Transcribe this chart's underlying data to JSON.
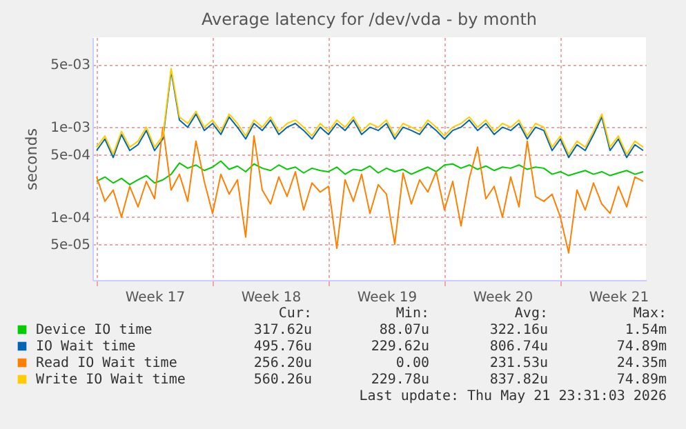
{
  "chart_data": {
    "type": "line",
    "title": "Average latency for /dev/vda - by month",
    "ylabel": "seconds",
    "log": true,
    "grid": true,
    "legend": "bottom",
    "ylim": [
      2e-05,
      0.01
    ],
    "yticks": [
      {
        "value": 0.005,
        "label": "5e-03"
      },
      {
        "value": 0.001,
        "label": "1e-03"
      },
      {
        "value": 0.0005,
        "label": "5e-04"
      },
      {
        "value": 0.0001,
        "label": "1e-04"
      },
      {
        "value": 5e-05,
        "label": "5e-05"
      }
    ],
    "xlim": [
      "2026-04-19T18:00",
      "2026-05-23T04:00"
    ],
    "xticks": [
      {
        "value": "2026-04-20T00:00",
        "label": null
      },
      {
        "value": "2026-04-23T12:00",
        "label": "Week 17"
      },
      {
        "value": "2026-04-27T00:00",
        "label": null
      },
      {
        "value": "2026-04-30T12:00",
        "label": "Week 18"
      },
      {
        "value": "2026-05-04T00:00",
        "label": null
      },
      {
        "value": "2026-05-07T12:00",
        "label": "Week 19"
      },
      {
        "value": "2026-05-11T00:00",
        "label": null
      },
      {
        "value": "2026-05-14T12:00",
        "label": "Week 20"
      },
      {
        "value": "2026-05-18T00:00",
        "label": null
      },
      {
        "value": "2026-05-21T12:00",
        "label": "Week 21"
      }
    ],
    "x": [
      "2026-04-20T00:00",
      "2026-04-20T12:00",
      "2026-04-21T00:00",
      "2026-04-21T12:00",
      "2026-04-22T00:00",
      "2026-04-22T12:00",
      "2026-04-23T00:00",
      "2026-04-23T12:00",
      "2026-04-24T00:00",
      "2026-04-24T12:00",
      "2026-04-25T00:00",
      "2026-04-25T12:00",
      "2026-04-26T00:00",
      "2026-04-26T12:00",
      "2026-04-27T00:00",
      "2026-04-27T12:00",
      "2026-04-28T00:00",
      "2026-04-28T12:00",
      "2026-04-29T00:00",
      "2026-04-29T12:00",
      "2026-04-30T00:00",
      "2026-04-30T12:00",
      "2026-05-01T00:00",
      "2026-05-01T12:00",
      "2026-05-02T00:00",
      "2026-05-02T12:00",
      "2026-05-03T00:00",
      "2026-05-03T12:00",
      "2026-05-04T00:00",
      "2026-05-04T12:00",
      "2026-05-05T00:00",
      "2026-05-05T12:00",
      "2026-05-06T00:00",
      "2026-05-06T12:00",
      "2026-05-07T00:00",
      "2026-05-07T12:00",
      "2026-05-08T00:00",
      "2026-05-08T12:00",
      "2026-05-09T00:00",
      "2026-05-09T12:00",
      "2026-05-10T00:00",
      "2026-05-10T12:00",
      "2026-05-11T00:00",
      "2026-05-11T12:00",
      "2026-05-12T00:00",
      "2026-05-12T12:00",
      "2026-05-13T00:00",
      "2026-05-13T12:00",
      "2026-05-14T00:00",
      "2026-05-14T12:00",
      "2026-05-15T00:00",
      "2026-05-15T12:00",
      "2026-05-16T00:00",
      "2026-05-16T12:00",
      "2026-05-17T00:00",
      "2026-05-17T12:00",
      "2026-05-18T00:00",
      "2026-05-18T12:00",
      "2026-05-19T00:00",
      "2026-05-19T12:00",
      "2026-05-20T00:00",
      "2026-05-20T12:00",
      "2026-05-21T00:00",
      "2026-05-21T12:00",
      "2026-05-22T00:00",
      "2026-05-22T12:00",
      "2026-05-23T00:00"
    ],
    "series": [
      {
        "name": "Device IO time",
        "color": "#00cc00",
        "values": [
          0.00025,
          0.00028,
          0.00024,
          0.00027,
          0.00023,
          0.00026,
          0.00029,
          0.00024,
          0.00026,
          0.0003,
          0.0004,
          0.00035,
          0.00038,
          0.00033,
          0.00036,
          0.00042,
          0.00034,
          0.00037,
          0.00032,
          0.00039,
          0.00035,
          0.00033,
          0.00038,
          0.00034,
          0.00036,
          0.00031,
          0.00035,
          0.00033,
          0.00032,
          0.00036,
          0.0003,
          0.00034,
          0.00033,
          0.00037,
          0.00031,
          0.00035,
          0.00032,
          0.00034,
          0.0003,
          0.00033,
          0.00036,
          0.00032,
          0.00038,
          0.00039,
          0.00035,
          0.00038,
          0.00034,
          0.00037,
          0.00033,
          0.00036,
          0.00035,
          0.00038,
          0.00034,
          0.00036,
          0.00035,
          0.0003,
          0.00032,
          0.00029,
          0.00031,
          0.00033,
          0.0003,
          0.00032,
          0.00029,
          0.00031,
          0.00033,
          0.0003,
          0.00032
        ]
      },
      {
        "name": "IO Wait time",
        "color": "#0066b3",
        "values": [
          0.00055,
          0.00074,
          0.00046,
          0.00083,
          0.00055,
          0.00064,
          0.00092,
          0.00055,
          0.00074,
          0.0042,
          0.0012,
          0.001,
          0.0014,
          0.00092,
          0.0011,
          0.00083,
          0.0013,
          0.001,
          0.00074,
          0.0011,
          0.00092,
          0.0012,
          0.00083,
          0.001,
          0.0011,
          0.00092,
          0.00074,
          0.001,
          0.00083,
          0.0011,
          0.00092,
          0.0012,
          0.00083,
          0.001,
          0.00092,
          0.0011,
          0.00074,
          0.001,
          0.00092,
          0.00083,
          0.0011,
          0.00092,
          0.00074,
          0.00092,
          0.001,
          0.0012,
          0.00092,
          0.0011,
          0.00083,
          0.001,
          0.00092,
          0.0011,
          0.00074,
          0.001,
          0.00092,
          0.00055,
          0.00074,
          0.00046,
          0.00064,
          0.00055,
          0.00083,
          0.0013,
          0.00055,
          0.00074,
          0.00046,
          0.00064,
          0.00055
        ]
      },
      {
        "name": "Read IO Wait time",
        "color": "#ff8000",
        "values": [
          0.00028,
          0.00015,
          0.0002,
          0.0001,
          0.00022,
          0.00013,
          0.00025,
          0.00016,
          0.001,
          0.0002,
          0.0003,
          0.00015,
          0.0007,
          0.00025,
          0.00011,
          0.0003,
          0.00018,
          0.00026,
          6e-05,
          0.0008,
          0.0002,
          0.00014,
          0.00028,
          0.00017,
          0.00032,
          0.00012,
          0.00024,
          0.00019,
          0.00022,
          4.5e-05,
          0.00026,
          0.00015,
          0.0003,
          0.00011,
          0.00023,
          0.00018,
          5e-05,
          0.00031,
          0.00014,
          0.00026,
          0.00019,
          0.00032,
          0.00012,
          0.00025,
          8e-05,
          0.00027,
          0.0006,
          0.00016,
          0.00022,
          0.0001,
          0.00028,
          0.00013,
          0.0007,
          0.00017,
          0.00015,
          0.00018,
          0.0001,
          4e-05,
          0.0002,
          0.00012,
          0.00024,
          0.00014,
          0.00011,
          0.00022,
          0.00013,
          0.00028,
          0.00025
        ]
      },
      {
        "name": "Write IO Wait time",
        "color": "#ffcc00",
        "values": [
          0.0006,
          0.0008,
          0.0005,
          0.0009,
          0.0006,
          0.0007,
          0.001,
          0.0006,
          0.0008,
          0.0045,
          0.0013,
          0.0011,
          0.0015,
          0.001,
          0.0012,
          0.0009,
          0.0014,
          0.0011,
          0.0008,
          0.0012,
          0.001,
          0.0013,
          0.0009,
          0.0011,
          0.0012,
          0.001,
          0.0008,
          0.0011,
          0.0009,
          0.0012,
          0.001,
          0.0013,
          0.0009,
          0.0011,
          0.001,
          0.0012,
          0.0008,
          0.0011,
          0.001,
          0.0009,
          0.0012,
          0.001,
          0.0008,
          0.001,
          0.0011,
          0.0013,
          0.001,
          0.0012,
          0.0009,
          0.0011,
          0.001,
          0.0012,
          0.0008,
          0.0011,
          0.001,
          0.0006,
          0.0008,
          0.0005,
          0.0007,
          0.0006,
          0.0009,
          0.0014,
          0.0006,
          0.0008,
          0.0005,
          0.0007,
          0.0006
        ]
      }
    ],
    "annotations": [
      "Cur:",
      "Min:",
      "Avg:",
      "Max:",
      "317.62u",
      "88.07u",
      "322.16u",
      "1.54m",
      "495.76u",
      "229.62u",
      "806.74u",
      "74.89m",
      "256.20u",
      "0.00",
      "231.53u",
      "24.35m",
      "560.26u",
      "229.78u",
      "837.82u",
      "74.89m",
      "Last update: Thu May 21 23:31:03 2026"
    ]
  }
}
